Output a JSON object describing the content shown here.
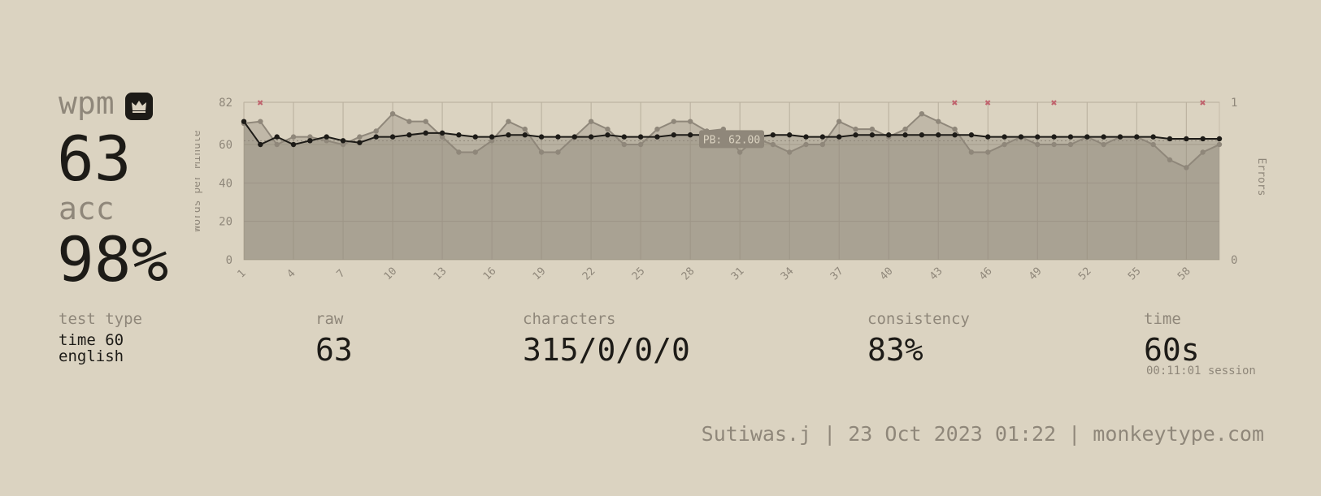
{
  "summary": {
    "wpm_label": "wpm",
    "wpm_value": "63",
    "acc_label": "acc",
    "acc_value": "98%"
  },
  "stats": {
    "test_type_label": "test type",
    "test_type_line1": "time 60",
    "test_type_line2": "english",
    "raw_label": "raw",
    "raw_value": "63",
    "characters_label": "characters",
    "characters_value": "315/0/0/0",
    "consistency_label": "consistency",
    "consistency_value": "83%",
    "time_label": "time",
    "time_value": "60s",
    "session_text": "00:11:01 session"
  },
  "footer": {
    "text": "Sutiwas.j | 23 Oct 2023 01:22 | monkeytype.com"
  },
  "colors": {
    "background": "#dbd3c1",
    "text_main": "#1d1b17",
    "text_sub": "#8f877a",
    "error_mark": "#c0646e"
  },
  "icons": {
    "pb_badge": "crown-icon"
  },
  "chart_data": {
    "type": "line",
    "ylabel": "Words per Minute",
    "y2label": "Errors",
    "ylim": [
      0,
      82
    ],
    "y2lim": [
      0,
      1
    ],
    "yticks": [
      "0",
      "20",
      "40",
      "60",
      "82"
    ],
    "y2ticks": [
      "0",
      "1"
    ],
    "xticks": [
      "1",
      "4",
      "7",
      "10",
      "13",
      "16",
      "19",
      "22",
      "25",
      "28",
      "31",
      "34",
      "37",
      "40",
      "43",
      "46",
      "49",
      "52",
      "55",
      "58"
    ],
    "x": [
      1,
      2,
      3,
      4,
      5,
      6,
      7,
      8,
      9,
      10,
      11,
      12,
      13,
      14,
      15,
      16,
      17,
      18,
      19,
      20,
      21,
      22,
      23,
      24,
      25,
      26,
      27,
      28,
      29,
      30,
      31,
      32,
      33,
      34,
      35,
      36,
      37,
      38,
      39,
      40,
      41,
      42,
      43,
      44,
      45,
      46,
      47,
      48,
      49,
      50,
      51,
      52,
      53,
      54,
      55,
      56,
      57,
      58,
      59,
      60
    ],
    "annotation": "PB: 62.00",
    "pb_value": 62,
    "series": [
      {
        "name": "raw",
        "values": [
          71,
          72,
          60,
          64,
          64,
          62,
          60,
          64,
          67,
          76,
          72,
          72,
          64,
          56,
          56,
          62,
          72,
          68,
          56,
          56,
          64,
          72,
          68,
          60,
          60,
          68,
          72,
          72,
          67,
          68,
          56,
          63,
          60,
          56,
          60,
          60,
          72,
          68,
          68,
          64,
          68,
          76,
          72,
          68,
          56,
          56,
          60,
          64,
          60,
          60,
          60,
          64,
          60,
          64,
          64,
          60,
          52,
          48,
          56,
          60
        ]
      },
      {
        "name": "wpm",
        "values": [
          72,
          60,
          64,
          60,
          62,
          64,
          62,
          61,
          64,
          64,
          65,
          66,
          66,
          65,
          64,
          64,
          65,
          65,
          64,
          64,
          64,
          64,
          65,
          64,
          64,
          64,
          65,
          65,
          65,
          64,
          64,
          64,
          65,
          65,
          64,
          64,
          64,
          65,
          65,
          65,
          65,
          65,
          65,
          65,
          65,
          64,
          64,
          64,
          64,
          64,
          64,
          64,
          64,
          64,
          64,
          64,
          63,
          63,
          63,
          63
        ]
      }
    ],
    "errors_at": [
      2,
      44,
      46,
      50,
      59
    ]
  }
}
